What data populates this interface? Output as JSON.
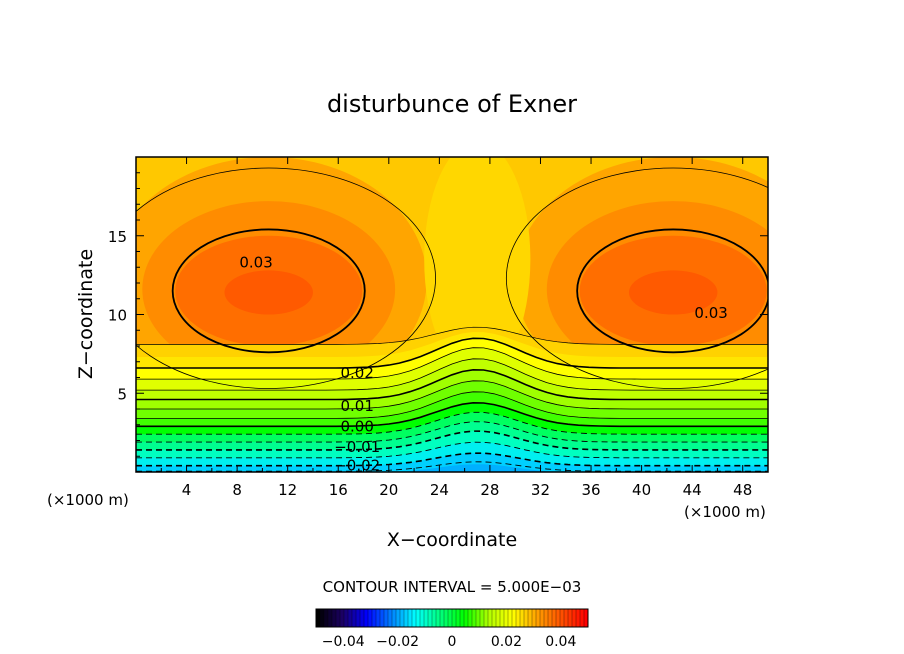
{
  "chart_data": {
    "type": "contour",
    "title": "disturbunce of Exner",
    "xlabel": "X−coordinate",
    "ylabel": "Z−coordinate",
    "x_unit": "(×1000 m)",
    "y_unit": "(×1000 m)",
    "xlim": [
      0,
      50
    ],
    "ylim": [
      0,
      20
    ],
    "x_ticks": [
      "4",
      "8",
      "12",
      "16",
      "20",
      "24",
      "28",
      "32",
      "36",
      "40",
      "44",
      "48"
    ],
    "y_ticks": [
      "5",
      "10",
      "15"
    ],
    "contour_interval_text": "CONTOUR INTERVAL = 5.000E−03",
    "contour_labels": [
      {
        "text": "0.03",
        "x": 9.5,
        "z": 13.3
      },
      {
        "text": "0.03",
        "x": 45.5,
        "z": 10.1
      },
      {
        "text": "0.02",
        "x": 17.5,
        "z": 6.3
      },
      {
        "text": "0.01",
        "x": 17.5,
        "z": 4.2
      },
      {
        "text": "0.00",
        "x": 17.5,
        "z": 2.9
      },
      {
        "text": "−0.01",
        "x": 17.5,
        "z": 1.6
      },
      {
        "text": "−0.02",
        "x": 17.5,
        "z": 0.4
      }
    ],
    "centers": [
      {
        "x": 10.5,
        "z": 11.5,
        "value": 0.034
      },
      {
        "x": 42.5,
        "z": 11.5,
        "value": 0.034
      }
    ],
    "colorbar": {
      "range": [
        -0.05,
        0.05
      ],
      "tick_labels": [
        "−0.04",
        "−0.02",
        "0",
        "0.02",
        "0.04"
      ],
      "colors": [
        "#000000",
        "#1b0064",
        "#0000ff",
        "#0080ff",
        "#00ffff",
        "#00ff80",
        "#00ff00",
        "#b0ff00",
        "#ffff00",
        "#ffa000",
        "#ff5000",
        "#ff0000"
      ]
    }
  }
}
